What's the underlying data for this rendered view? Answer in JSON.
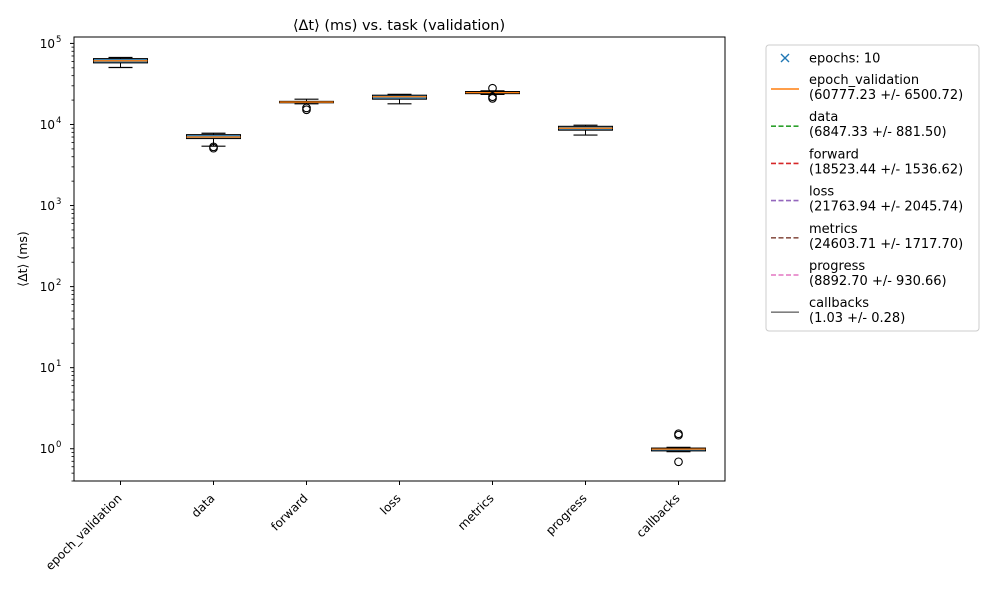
{
  "chart_data": {
    "type": "box",
    "title": "⟨Δt⟩ (ms) vs. task (validation)",
    "xlabel": "",
    "ylabel": "⟨Δt⟩ (ms)",
    "yscale": "log",
    "ylim": [
      0.4,
      120000
    ],
    "y_ticks": [
      {
        "value": 1,
        "label": "10",
        "exp": "0"
      },
      {
        "value": 10,
        "label": "10",
        "exp": "1"
      },
      {
        "value": 100,
        "label": "10",
        "exp": "2"
      },
      {
        "value": 1000,
        "label": "10",
        "exp": "3"
      },
      {
        "value": 10000,
        "label": "10",
        "exp": "4"
      },
      {
        "value": 100000,
        "label": "10",
        "exp": "5"
      }
    ],
    "grid": false,
    "legend_position": "outside-right",
    "categories": [
      "epoch_validation",
      "data",
      "forward",
      "loss",
      "metrics",
      "progress",
      "callbacks"
    ],
    "boxes": [
      {
        "name": "epoch_validation",
        "whisker_low": 50500,
        "q1": 57500,
        "median": 61000,
        "q3": 65000,
        "whisker_high": 67000,
        "outliers": []
      },
      {
        "name": "data",
        "whisker_low": 5400,
        "q1": 6700,
        "median": 7000,
        "q3": 7500,
        "whisker_high": 7800,
        "outliers": [
          5100,
          5300
        ]
      },
      {
        "name": "forward",
        "whisker_low": 18000,
        "q1": 18500,
        "median": 18900,
        "q3": 19300,
        "whisker_high": 20500,
        "outliers": [
          15200,
          16000
        ]
      },
      {
        "name": "loss",
        "whisker_low": 18000,
        "q1": 20500,
        "median": 22000,
        "q3": 23000,
        "whisker_high": 23500,
        "outliers": []
      },
      {
        "name": "metrics",
        "whisker_low": 23500,
        "q1": 24000,
        "median": 24700,
        "q3": 25500,
        "whisker_high": 26000,
        "outliers": [
          21000,
          22000,
          28000
        ]
      },
      {
        "name": "progress",
        "whisker_low": 7400,
        "q1": 8500,
        "median": 9000,
        "q3": 9500,
        "whisker_high": 9800,
        "outliers": []
      },
      {
        "name": "callbacks",
        "whisker_low": 0.92,
        "q1": 0.94,
        "median": 0.99,
        "q3": 1.02,
        "whisker_high": 1.04,
        "outliers": [
          0.69,
          1.47,
          1.53
        ]
      }
    ],
    "legend": [
      {
        "label": "epochs: 10",
        "marker": "x",
        "color": "#1f77b4"
      },
      {
        "label": "epoch_validation",
        "stat": "(60777.23 +/- 6500.72)",
        "style": "solid",
        "color": "#ff7f0e"
      },
      {
        "label": "data",
        "stat": "(6847.33 +/- 881.50)",
        "style": "dashed",
        "color": "#2ca02c"
      },
      {
        "label": "forward",
        "stat": "(18523.44 +/- 1536.62)",
        "style": "dashed",
        "color": "#d62728"
      },
      {
        "label": "loss",
        "stat": "(21763.94 +/- 2045.74)",
        "style": "dashed",
        "color": "#9467bd"
      },
      {
        "label": "metrics",
        "stat": "(24603.71 +/- 1717.70)",
        "style": "dashed",
        "color": "#8c564b"
      },
      {
        "label": "progress",
        "stat": "(8892.70 +/- 930.66)",
        "style": "dashed",
        "color": "#e377c2"
      },
      {
        "label": "callbacks",
        "stat": "(1.03 +/- 0.28)",
        "style": "solid",
        "color": "#7f7f7f"
      }
    ],
    "colors": {
      "box_face": "#1f77b4",
      "median": "#ff7f0e",
      "whisker": "#000000",
      "outlier": "#000000"
    }
  }
}
